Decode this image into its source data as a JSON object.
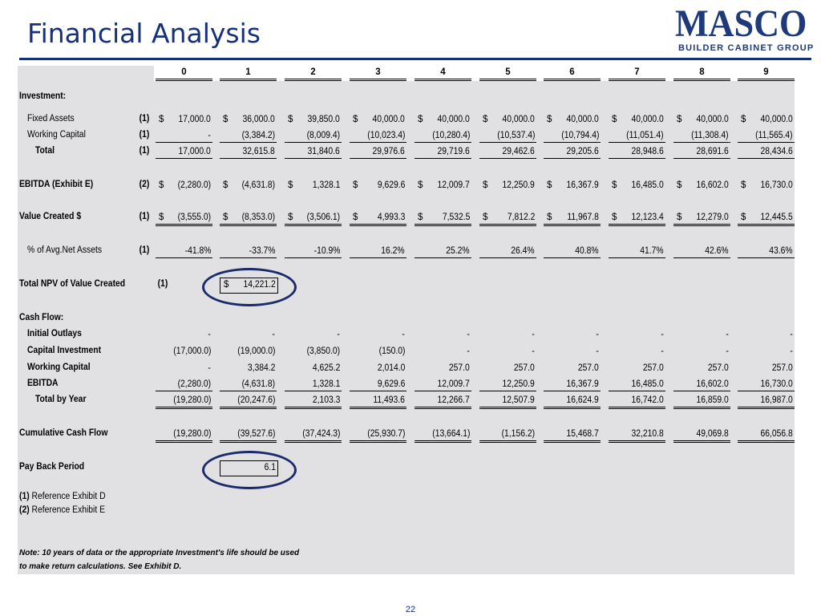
{
  "title": "Financial Analysis",
  "logo": {
    "word": "MASCO",
    "sub": "BUILDER CABINET GROUP"
  },
  "years": [
    "0",
    "1",
    "2",
    "3",
    "4",
    "5",
    "6",
    "7",
    "8",
    "9"
  ],
  "rows": [
    {
      "id": "investment",
      "label": "Investment:",
      "bold": true,
      "ref": "",
      "top": 32,
      "values": []
    },
    {
      "id": "fixed-assets",
      "label": "Fixed Assets",
      "bold": false,
      "indent": 10,
      "ref": "(1)",
      "top": 60,
      "cur": [
        "$",
        "$",
        "$",
        "$",
        "$",
        "$",
        "$",
        "$",
        "$",
        "$"
      ],
      "values": [
        "17,000.0",
        "36,000.0",
        "39,850.0",
        "40,000.0",
        "40,000.0",
        "40,000.0",
        "40,000.0",
        "40,000.0",
        "40,000.0",
        "40,000.0"
      ],
      "line": ""
    },
    {
      "id": "working-capital",
      "label": "Working Capital",
      "bold": false,
      "indent": 10,
      "ref": "(1)",
      "top": 80,
      "cur": [],
      "values": [
        "-",
        "(3,384.2)",
        "(8,009.4)",
        "(10,023.4)",
        "(10,280.4)",
        "(10,537.4)",
        "(10,794.4)",
        "(11,051.4)",
        "(11,308.4)",
        "(11,565.4)"
      ],
      "line": "ul"
    },
    {
      "id": "total",
      "label": "Total",
      "bold": true,
      "indent": 20,
      "ref": "(1)",
      "top": 100,
      "cur": [],
      "values": [
        "17,000.0",
        "32,615.8",
        "31,840.6",
        "29,976.6",
        "29,719.6",
        "29,462.6",
        "29,205.6",
        "28,948.6",
        "28,691.6",
        "28,434.6"
      ],
      "line": "ul"
    },
    {
      "id": "ebitda",
      "label": "EBITDA  (Exhibit E)",
      "bold": true,
      "indent": 0,
      "ref": "(2)",
      "top": 142,
      "cur": [
        "$",
        "$",
        "$",
        "$",
        "$",
        "$",
        "$",
        "$",
        "$",
        "$"
      ],
      "values": [
        "(2,280.0)",
        "(4,631.8)",
        "1,328.1",
        "9,629.6",
        "12,009.7",
        "12,250.9",
        "16,367.9",
        "16,485.0",
        "16,602.0",
        "16,730.0"
      ],
      "line": ""
    },
    {
      "id": "value-created",
      "label": "Value Created $",
      "bold": true,
      "indent": 0,
      "ref": "(1)",
      "top": 182,
      "cur": [
        "$",
        "$",
        "$",
        "$",
        "$",
        "$",
        "$",
        "$",
        "$",
        "$"
      ],
      "values": [
        "(3,555.0)",
        "(8,353.0)",
        "(3,506.1)",
        "4,993.3",
        "7,532.5",
        "7,812.2",
        "11,967.8",
        "12,123.4",
        "12,279.0",
        "12,445.5"
      ],
      "line": "dul"
    },
    {
      "id": "pct-net-assets",
      "label": "% of Avg.Net Assets",
      "bold": false,
      "indent": 10,
      "ref": "(1)",
      "top": 224,
      "cur": [],
      "values": [
        "-41.8%",
        "-33.7%",
        "-10.9%",
        "16.2%",
        "25.2%",
        "26.4%",
        "40.8%",
        "41.7%",
        "42.6%",
        "43.6%"
      ],
      "line": "ul"
    },
    {
      "id": "cash-flow",
      "label": "Cash Flow:",
      "bold": true,
      "indent": 0,
      "ref": "",
      "top": 308,
      "values": []
    },
    {
      "id": "initial-outlays",
      "label": "Initial Outlays",
      "bold": true,
      "indent": 10,
      "ref": "",
      "top": 328,
      "cur": [],
      "values": [
        "-",
        "-",
        "-",
        "-",
        "-",
        "-",
        "-",
        "-",
        "-",
        "-"
      ],
      "line": ""
    },
    {
      "id": "capital-investment",
      "label": "Capital Investment",
      "bold": true,
      "indent": 10,
      "ref": "",
      "top": 349,
      "cur": [],
      "values": [
        "(17,000.0)",
        "(19,000.0)",
        "(3,850.0)",
        "(150.0)",
        "-",
        "-",
        "-",
        "-",
        "-",
        "-"
      ],
      "line": ""
    },
    {
      "id": "cf-working-capital",
      "label": "Working Capital",
      "bold": true,
      "indent": 10,
      "ref": "",
      "top": 370,
      "cur": [],
      "values": [
        "-",
        "3,384.2",
        "4,625.2",
        "2,014.0",
        "257.0",
        "257.0",
        "257.0",
        "257.0",
        "257.0",
        "257.0"
      ],
      "line": ""
    },
    {
      "id": "cf-ebitda",
      "label": "EBITDA",
      "bold": true,
      "indent": 10,
      "ref": "",
      "top": 390,
      "cur": [],
      "values": [
        "(2,280.0)",
        "(4,631.8)",
        "1,328.1",
        "9,629.6",
        "12,009.7",
        "12,250.9",
        "16,367.9",
        "16,485.0",
        "16,602.0",
        "16,730.0"
      ],
      "line": "ul"
    },
    {
      "id": "total-by-year",
      "label": "Total by Year",
      "bold": true,
      "indent": 20,
      "ref": "",
      "top": 410,
      "cur": [],
      "values": [
        "(19,280.0)",
        "(20,247.6)",
        "2,103.3",
        "11,493.6",
        "12,266.7",
        "12,507.9",
        "16,624.9",
        "16,742.0",
        "16,859.0",
        "16,987.0"
      ],
      "line": "dul"
    },
    {
      "id": "cumulative-cash-flow",
      "label": "Cumulative Cash Flow",
      "bold": true,
      "indent": 0,
      "ref": "",
      "top": 452,
      "cur": [],
      "values": [
        "(19,280.0)",
        "(39,527.6)",
        "(37,424.3)",
        "(25,930.7)",
        "(13,664.1)",
        "(1,156.2)",
        "15,468.7",
        "32,210.8",
        "49,069.8",
        "66,056.8"
      ],
      "line": "dul"
    }
  ],
  "npv": {
    "label": "Total NPV of Value Created",
    "ref": "(1)",
    "cur": "$",
    "value": "14,221.2"
  },
  "payback": {
    "label": "Pay Back Period",
    "value": "6.1"
  },
  "references": [
    {
      "num": "(1)",
      "text": "Reference Exhibit D"
    },
    {
      "num": "(2)",
      "text": "Reference Exhibit E"
    }
  ],
  "note": {
    "line1": "Note:  10 years of data or the appropriate Investment's life should be used",
    "line2": "to make return calculations.  See Exhibit D."
  },
  "page_number": "22"
}
